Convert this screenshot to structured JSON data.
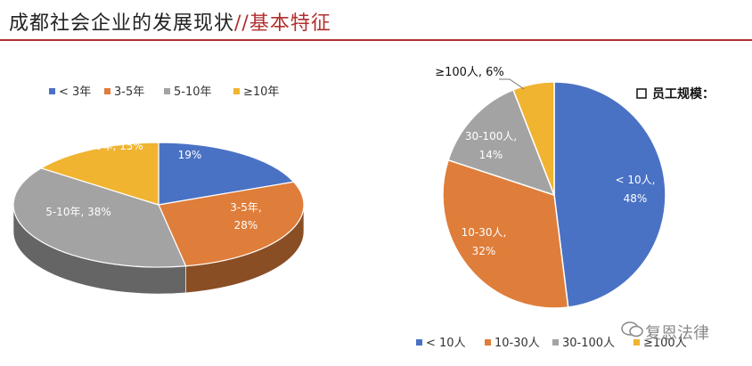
{
  "header": {
    "title_main": "成都社会企业的发展现状",
    "title_sep": "//",
    "title_sub": "基本特征"
  },
  "colors": {
    "blue": "#4a72c4",
    "orange": "#df7d3a",
    "gray": "#a3a3a3",
    "yellow": "#f0b431",
    "accent": "#b0302f"
  },
  "chart_data": [
    {
      "type": "pie",
      "variant": "3d",
      "title": "",
      "categories": [
        "< 3年",
        "3-5年",
        "5-10年",
        "≥10年"
      ],
      "values": [
        19,
        28,
        38,
        15
      ],
      "data_labels": [
        "< 3年, 19%",
        "3-5年, 28%",
        "5-10年, 38%",
        "≥10年, 15%"
      ],
      "legend_position": "top"
    },
    {
      "type": "pie",
      "title": "员工规模：",
      "categories": [
        "< 10人",
        "10-30人",
        "30-100人",
        "≥100人"
      ],
      "values": [
        48,
        32,
        14,
        6
      ],
      "data_labels": [
        "< 10人, 48%",
        "10-30人, 32%",
        "30-100人, 14%",
        "≥100人, 6%"
      ],
      "legend_position": "bottom"
    }
  ],
  "watermark": {
    "text": "复恩法律",
    "icon": "wechat-icon"
  }
}
